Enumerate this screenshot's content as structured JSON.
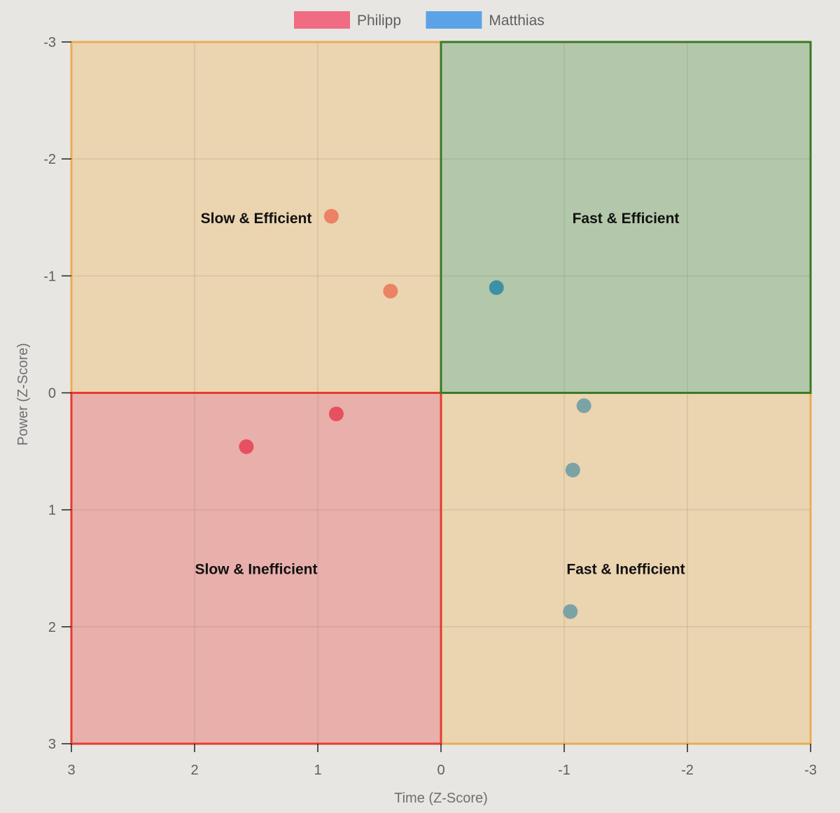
{
  "chart_data": {
    "type": "scatter",
    "xlabel": "Time (Z-Score)",
    "ylabel": "Power (Z-Score)",
    "xlim": [
      3,
      -3
    ],
    "ylim": [
      -3,
      3
    ],
    "x_reversed": true,
    "y_reversed": true,
    "xticks": [
      3,
      2,
      1,
      0,
      -1,
      -2,
      -3
    ],
    "yticks": [
      -3,
      -2,
      -1,
      0,
      1,
      2,
      3
    ],
    "xtick_labels": [
      "3",
      "2",
      "1",
      "0",
      "-1",
      "-2",
      "-3"
    ],
    "ytick_labels": [
      "-3",
      "-2",
      "-1",
      "0",
      "1",
      "2",
      "3"
    ],
    "grid": true,
    "legend": {
      "position": "top-center",
      "entries": [
        {
          "name": "Philipp",
          "color": "#f06c82"
        },
        {
          "name": "Matthias",
          "color": "#5ba3e6"
        }
      ]
    },
    "quadrants": [
      {
        "label": "Slow & Efficient",
        "x_range": [
          0,
          3
        ],
        "y_range": [
          -3,
          0
        ],
        "fill": "#ebd4b0",
        "border": "#e8ad55"
      },
      {
        "label": "Fast & Efficient",
        "x_range": [
          -3,
          0
        ],
        "y_range": [
          -3,
          0
        ],
        "fill": "#b3c8aa",
        "border": "#3b7a22"
      },
      {
        "label": "Slow & Inefficient",
        "x_range": [
          0,
          3
        ],
        "y_range": [
          0,
          3
        ],
        "fill": "#e8afab",
        "border": "#e63b2e"
      },
      {
        "label": "Fast & Inefficient",
        "x_range": [
          -3,
          0
        ],
        "y_range": [
          0,
          3
        ],
        "fill": "#ebd4b0",
        "border": "#e8ad55"
      }
    ],
    "quadrant_label_positions": [
      {
        "x": 1.5,
        "y": -1.5
      },
      {
        "x": -1.5,
        "y": -1.5
      },
      {
        "x": 1.5,
        "y": 1.5
      },
      {
        "x": -1.5,
        "y": 1.5
      }
    ],
    "series": [
      {
        "name": "Philipp",
        "color": "#f06c82",
        "points": [
          {
            "x": 0.89,
            "y": -1.51,
            "color": "#ec8264"
          },
          {
            "x": 0.41,
            "y": -0.87,
            "color": "#ec8264"
          },
          {
            "x": 0.85,
            "y": 0.18,
            "color": "#e65060"
          },
          {
            "x": 1.58,
            "y": 0.46,
            "color": "#e65060"
          }
        ]
      },
      {
        "name": "Matthias",
        "color": "#5ba3e6",
        "points": [
          {
            "x": -0.45,
            "y": -0.9,
            "color": "#3e90a6"
          },
          {
            "x": -1.16,
            "y": 0.11,
            "color": "#7ba3a6"
          },
          {
            "x": -1.07,
            "y": 0.66,
            "color": "#7ba3a6"
          },
          {
            "x": -1.05,
            "y": 1.87,
            "color": "#7ba3a6"
          }
        ]
      }
    ]
  }
}
